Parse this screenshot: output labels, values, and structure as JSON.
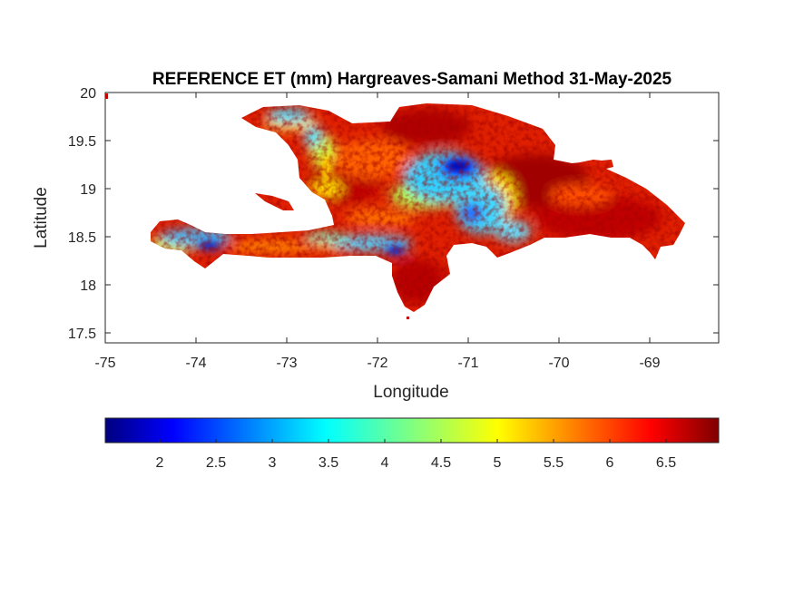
{
  "title": "REFERENCE ET (mm) Hargreaves-Samani Method  31-May-2025",
  "x_axis": {
    "label": "Longitude",
    "ticks": [
      "-75",
      "-74",
      "-73",
      "-72",
      "-71",
      "-70",
      "-69"
    ]
  },
  "y_axis": {
    "label": "Latitude",
    "ticks": [
      "20",
      "19.5",
      "19",
      "18.5",
      "18",
      "17.5"
    ]
  },
  "colorbar": {
    "colormap": "jet",
    "ticks": [
      "2",
      "2.5",
      "3",
      "3.5",
      "4",
      "4.5",
      "5",
      "5.5",
      "6",
      "6.5"
    ]
  },
  "map": {
    "region": "Hispaniola (Haiti and Dominican Republic)",
    "lon_range": [
      -75,
      -68.2
    ],
    "lat_range": [
      17.4,
      20
    ],
    "value_range_mm": [
      1.5,
      6.95
    ],
    "colors": {
      "dark_red": "#8b0000",
      "red": "#e60000",
      "orange": "#ff8c00",
      "yellow": "#ffe600",
      "cyan": "#30d5ff",
      "blue": "#1a3cff",
      "dark_blue": "#00007f"
    }
  }
}
